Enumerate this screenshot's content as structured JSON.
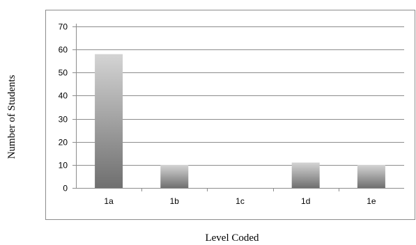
{
  "chart_data": {
    "type": "bar",
    "categories": [
      "1a",
      "1b",
      "1c",
      "1d",
      "1e"
    ],
    "values": [
      58,
      10,
      0,
      11,
      10
    ],
    "title": "",
    "xlabel": "Level Coded",
    "ylabel": "Number of Students",
    "ylim": [
      0,
      70
    ],
    "yticks": [
      0,
      10,
      20,
      30,
      40,
      50,
      60,
      70
    ],
    "grid": true,
    "legend": "none",
    "colors": {
      "bar_top": "#d4d4d4",
      "bar_bottom": "#6f6f6f",
      "grid": "#8c8c8c",
      "frame": "#8c8c8c"
    }
  }
}
